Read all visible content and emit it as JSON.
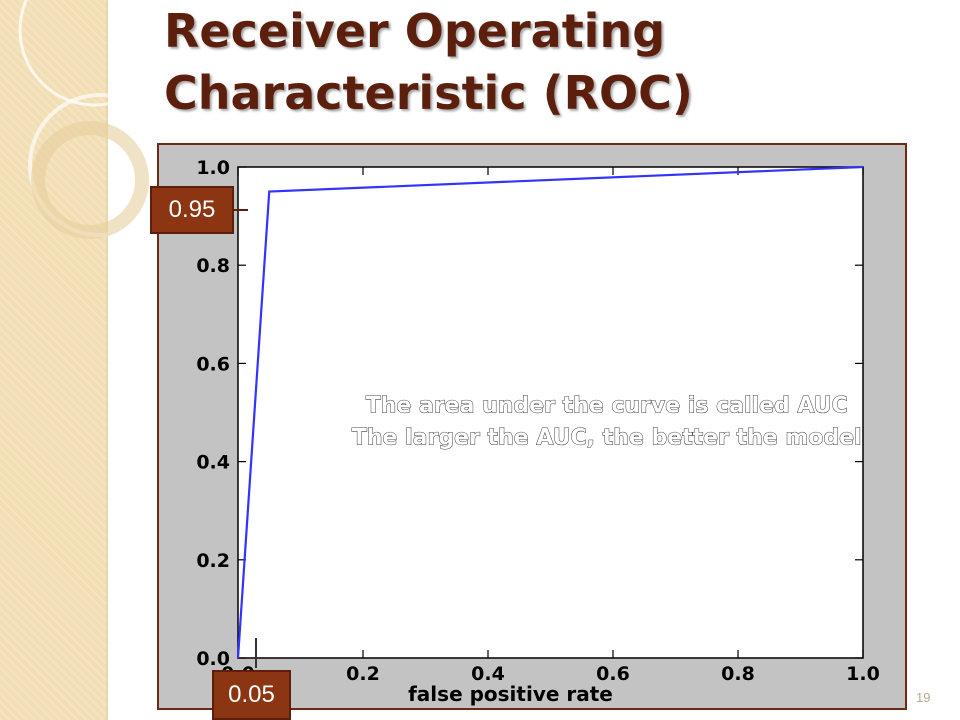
{
  "slide": {
    "title_line1": "Receiver Operating",
    "title_line2": "Characteristic (ROC)",
    "slide_number": "19"
  },
  "callouts": {
    "tpr_value": "0.95",
    "fpr_value": "0.05"
  },
  "colors": {
    "curve": "#3333ff",
    "title": "#5c1f0d",
    "callout_bg": "#8b3513",
    "plot_bg": "#ffffff",
    "frame_bg": "#c3c3c3"
  },
  "chart_data": {
    "type": "line",
    "title": "",
    "xlabel": "false positive rate",
    "ylabel": "",
    "xlim": [
      0,
      1
    ],
    "ylim": [
      0,
      1
    ],
    "x_ticks": [
      "0.0",
      "0.2",
      "0.4",
      "0.6",
      "0.8",
      "1.0"
    ],
    "y_ticks": [
      "0.0",
      "0.2",
      "0.4",
      "0.6",
      "0.8",
      "1.0"
    ],
    "grid": false,
    "series": [
      {
        "values_x": [
          0.0,
          0.05,
          1.0
        ],
        "values_y": [
          0.0,
          0.95,
          1.0
        ]
      }
    ],
    "annotations": [
      "The area under the curve is called AUC",
      "The larger the AUC, the better the model"
    ]
  }
}
